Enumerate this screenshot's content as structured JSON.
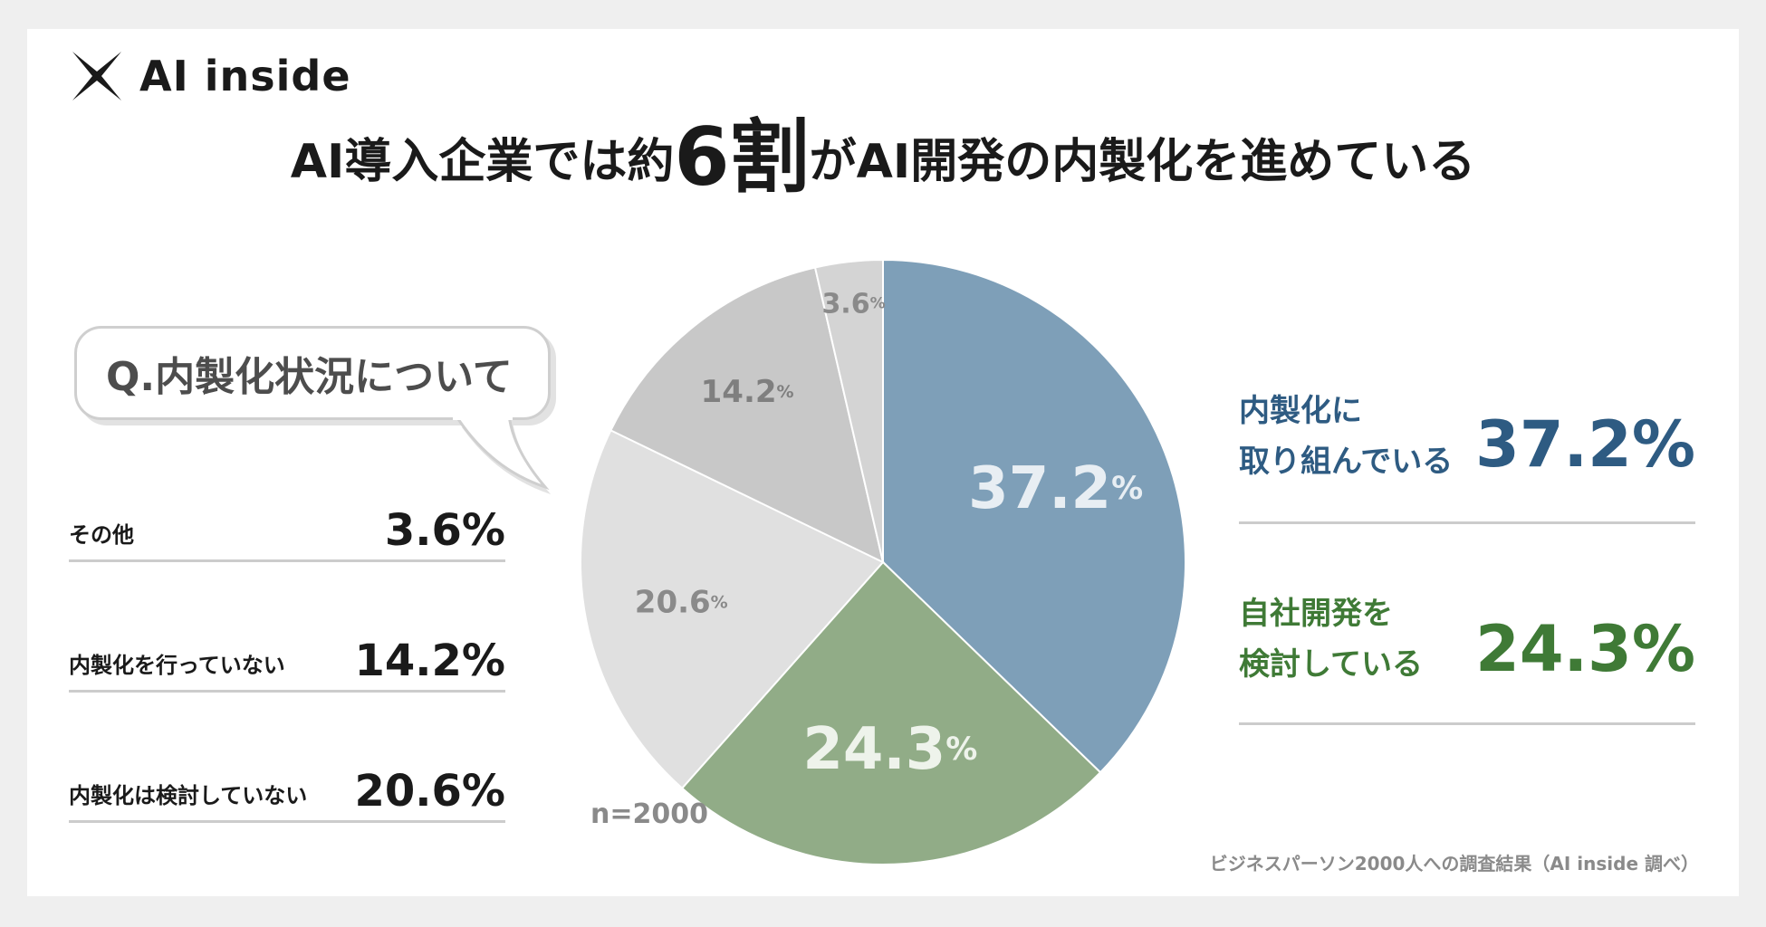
{
  "brand": {
    "name": "AI inside"
  },
  "headline": {
    "part1": "AI導入企業では約",
    "highlight": "6割",
    "part2": "がAI開発の内製化を進めている"
  },
  "question": "Q.内製化状況について",
  "sample": "n=2000",
  "source": "ビジネスパーソン2000人への調査結果（AI inside 調べ）",
  "colors": {
    "blue": "#7e9fb8",
    "green": "#91ac87",
    "light_gray": "#e0e0e0",
    "mid_gray": "#c8c8c8",
    "pale_gray": "#d4d4d4",
    "blue_text": "#2e5b82",
    "green_text": "#3f7a36"
  },
  "left_rows": [
    {
      "label": "その他",
      "value": "3.6%"
    },
    {
      "label": "内製化を行っていない",
      "value": "14.2%"
    },
    {
      "label": "内製化は検討していない",
      "value": "20.6%"
    }
  ],
  "right_rows": [
    {
      "line1": "内製化に",
      "line2": "取り組んでいる",
      "value": "37.2%"
    },
    {
      "line1": "自社開発を",
      "line2": "検討している",
      "value": "24.3%"
    }
  ],
  "chart_data": {
    "type": "pie",
    "categories": [
      "内製化に取り組んでいる",
      "自社開発を検討している",
      "内製化は検討していない",
      "内製化を行っていない",
      "その他"
    ],
    "values": [
      37.2,
      24.3,
      20.6,
      14.2,
      3.6
    ],
    "value_labels": [
      "37.2",
      "24.3",
      "20.6",
      "14.2",
      "3.6"
    ],
    "unit": "%",
    "colors": [
      "#7e9fb8",
      "#91ac87",
      "#e0e0e0",
      "#c8c8c8",
      "#d4d4d4"
    ],
    "label_colors": [
      "#e8eef3",
      "#eef3eb",
      "#8a8a8a",
      "#7f7f7f",
      "#8a8a8a"
    ],
    "start": "12 o'clock",
    "direction": "clockwise"
  }
}
